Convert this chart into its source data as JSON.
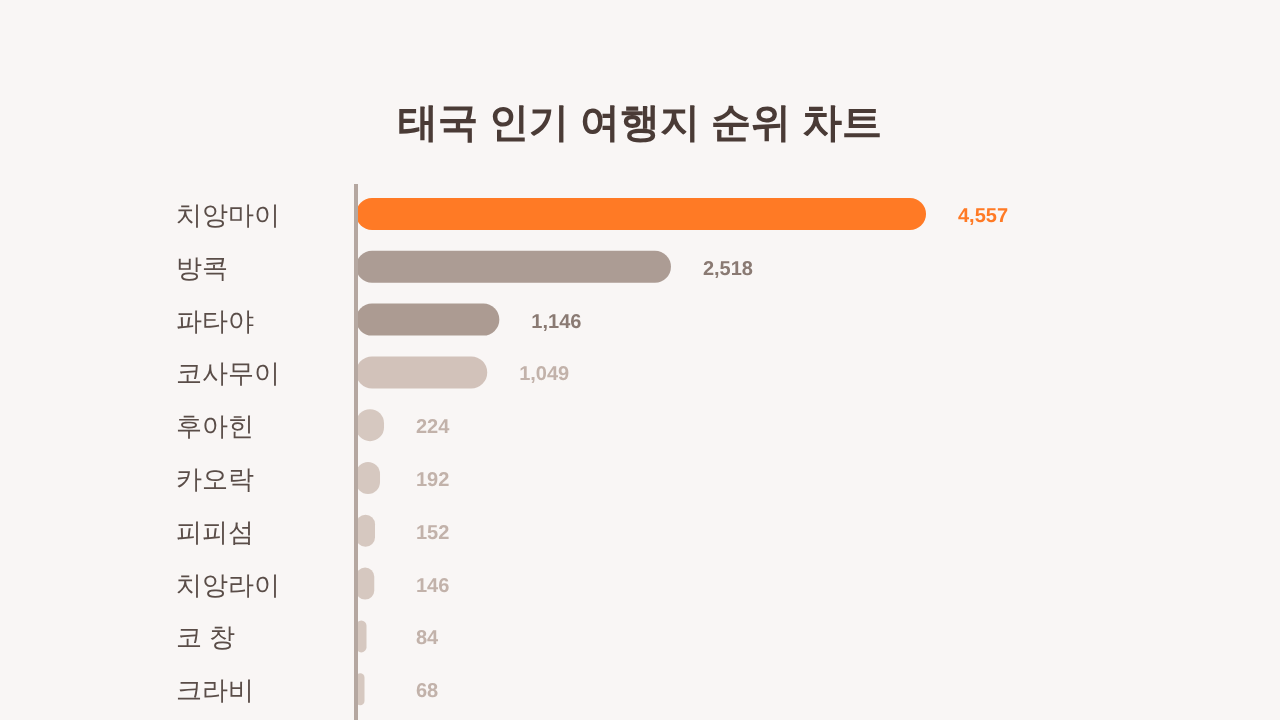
{
  "chart_data": {
    "type": "bar",
    "orientation": "horizontal",
    "title": "태국 인기 여행지 순위 차트",
    "categories": [
      "치앙마이",
      "방콕",
      "파타야",
      "코사무이",
      "후아힌",
      "카오락",
      "피피섬",
      "치앙라이",
      "코 창",
      "크라비"
    ],
    "values": [
      4557,
      2518,
      1146,
      1049,
      224,
      192,
      152,
      146,
      84,
      68
    ],
    "colors": [
      "#ff7a25",
      "#ac9c94",
      "#ac9b92",
      "#d2c2ba",
      "#d6c8c0",
      "#d6c8c0",
      "#d6c8c0",
      "#d6c8c0",
      "#d6c8c0",
      "#d6c8c0"
    ],
    "value_labels": [
      "4,557",
      "2,518",
      "1,146",
      "1,049",
      "224",
      "192",
      "152",
      "146",
      "84",
      "68"
    ],
    "tick_labels": "y",
    "grid": false
  }
}
